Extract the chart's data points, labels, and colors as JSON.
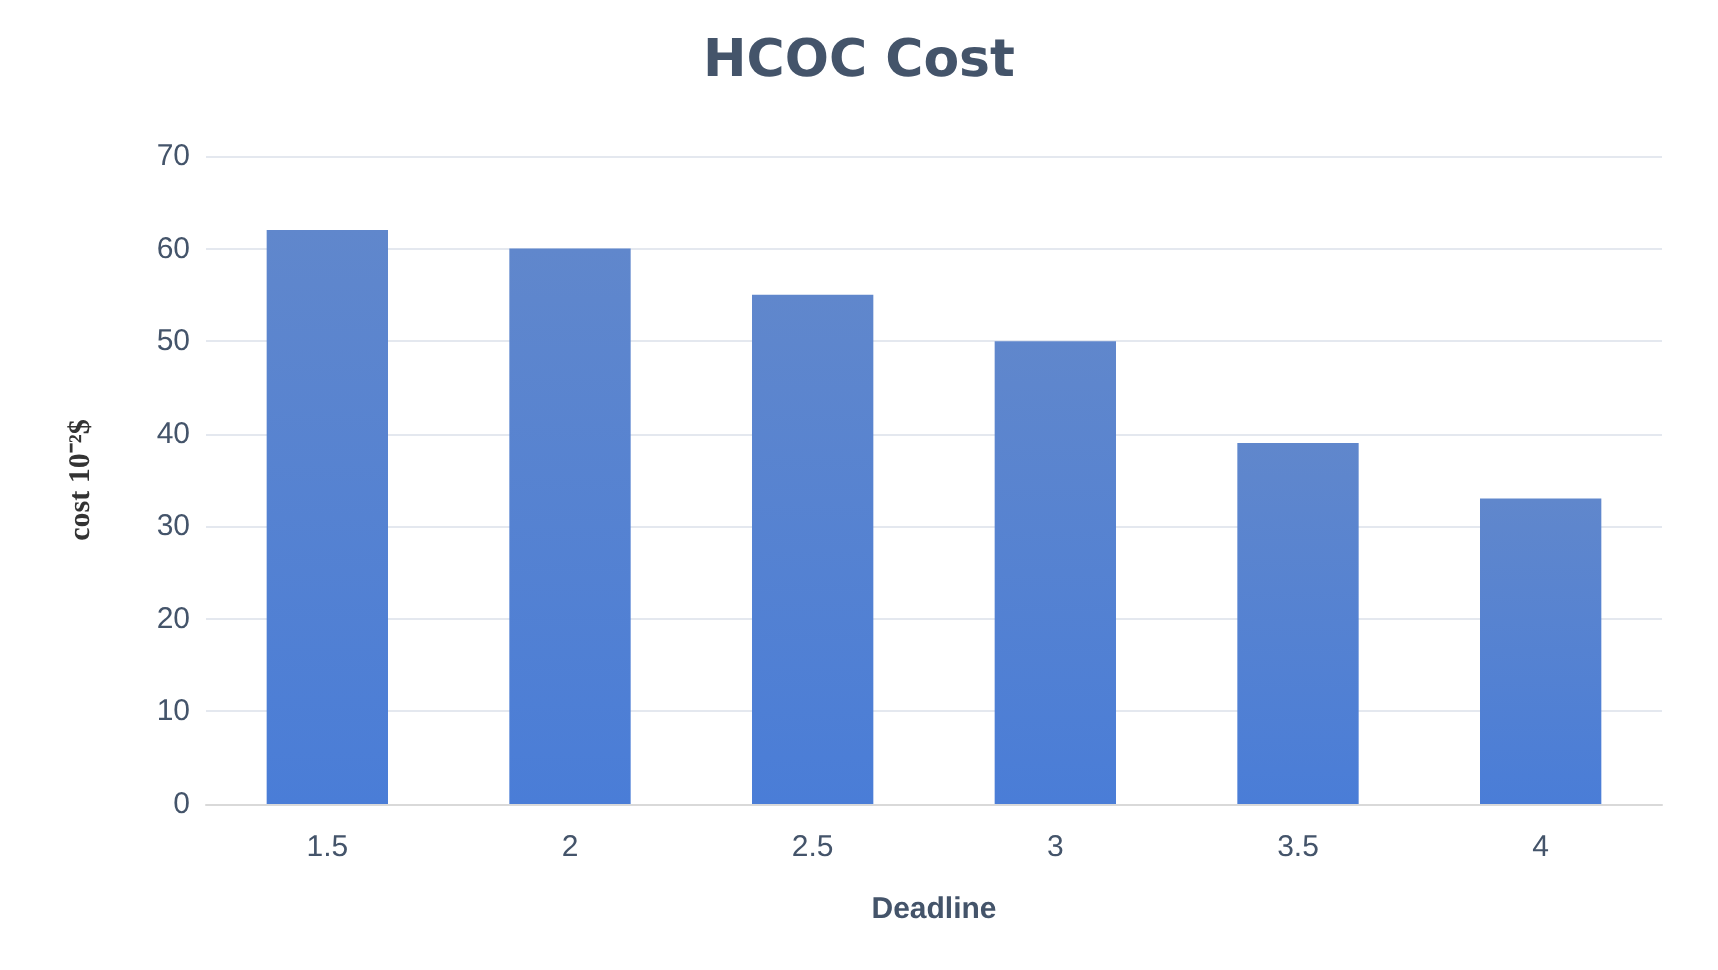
{
  "chart_data": {
    "type": "bar",
    "title": "HCOC Cost",
    "xlabel": "Deadline",
    "ylabel": "cost 10⁻²$",
    "categories": [
      "1.5",
      "2",
      "2.5",
      "3",
      "3.5",
      "4"
    ],
    "values": [
      62,
      60,
      55,
      50,
      39,
      33
    ],
    "color": "#4472c4",
    "ylim": [
      0,
      70
    ],
    "yticks": [
      0,
      10,
      20,
      30,
      40,
      50,
      60,
      70
    ],
    "grid": "y"
  }
}
